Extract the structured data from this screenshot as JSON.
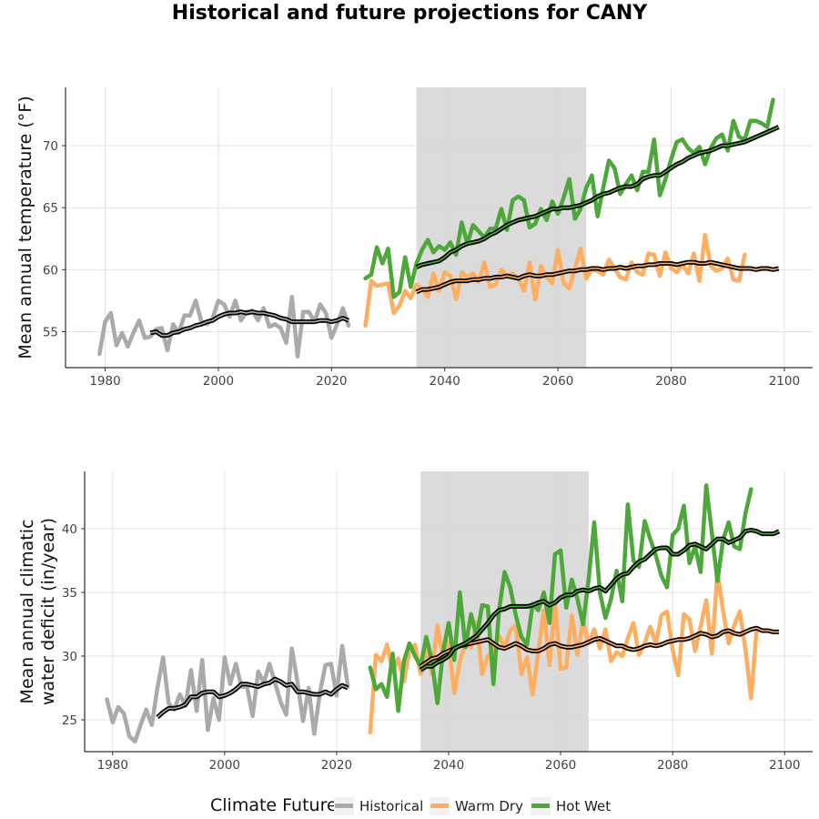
{
  "title": "Historical and future projections for CANY",
  "colors": {
    "historical": "#aaaaaa",
    "warm_dry": "#fdae61",
    "hot_wet": "#4da83a",
    "smooth": "#000000",
    "shade": "#d9d9d9"
  },
  "legend": {
    "title": "Climate Future",
    "items": [
      {
        "label": "Historical",
        "color": "#aaaaaa"
      },
      {
        "label": "Warm Dry",
        "color": "#fdae61"
      },
      {
        "label": "Hot Wet",
        "color": "#4da83a"
      }
    ]
  },
  "chart_data": [
    {
      "type": "line",
      "ylabel": [
        "Mean annual temperature (°F)"
      ],
      "xlim": [
        1973,
        2105
      ],
      "ylim": [
        52.1,
        74.7
      ],
      "xticks": [
        1980,
        2000,
        2020,
        2040,
        2060,
        2080,
        2100
      ],
      "yticks": [
        55,
        60,
        65,
        70
      ],
      "shaded_period": [
        2035,
        2065
      ],
      "grid": true,
      "series": [
        {
          "name": "Historical",
          "key": "historical",
          "x_start": 1979,
          "values": [
            53.2,
            55.8,
            56.5,
            53.9,
            54.9,
            53.8,
            54.9,
            55.9,
            54.5,
            54.6,
            55.2,
            55.3,
            53.5,
            55.6,
            54.9,
            56.3,
            56.3,
            57.5,
            55.8,
            55.6,
            56.1,
            57.5,
            57.2,
            56.2,
            57.5,
            55.9,
            56.6,
            56.7,
            55.9,
            56.9,
            55.4,
            55.6,
            55.3,
            54.1,
            57.8,
            53.0,
            56.6,
            56.6,
            55.8,
            57.2,
            56.5,
            54.5,
            55.6,
            56.9,
            55.5
          ]
        },
        {
          "name": "Warm Dry",
          "key": "warm_dry",
          "x_start": 2026,
          "values": [
            55.5,
            59.1,
            58.7,
            58.8,
            58.9,
            56.5,
            57.1,
            58.3,
            57.7,
            58.8,
            58.4,
            57.8,
            59.7,
            58.3,
            59.8,
            59.5,
            57.6,
            59.8,
            59.4,
            59.7,
            59.0,
            60.6,
            58.6,
            58.8,
            60.0,
            59.5,
            59.7,
            59.3,
            58.3,
            60.6,
            57.6,
            60.3,
            59.4,
            58.9,
            61.6,
            58.9,
            58.5,
            60.1,
            61.7,
            59.3,
            60.0,
            59.9,
            59.6,
            60.8,
            60.1,
            59.4,
            59.2,
            60.6,
            59.8,
            59.6,
            61.3,
            61.2,
            59.5,
            61.4,
            60.1,
            59.8,
            60.4,
            59.7,
            61.3,
            59.1,
            62.8,
            60.3,
            59.9,
            60.1,
            60.9,
            59.2,
            59.1,
            61.2
          ]
        },
        {
          "name": "Hot Wet",
          "key": "hot_wet",
          "x_start": 2026,
          "values": [
            59.3,
            59.6,
            61.8,
            60.5,
            61.7,
            57.8,
            58.2,
            61.0,
            58.6,
            60.5,
            61.6,
            62.4,
            61.4,
            61.9,
            61.6,
            62.2,
            61.2,
            63.8,
            62.1,
            63.6,
            63.1,
            62.6,
            63.3,
            63.3,
            64.9,
            63.2,
            65.6,
            65.9,
            65.6,
            63.4,
            63.7,
            64.9,
            64.0,
            65.5,
            64.5,
            65.8,
            67.3,
            64.1,
            64.9,
            66.6,
            67.6,
            64.3,
            66.6,
            68.8,
            68.2,
            66.1,
            66.9,
            67.6,
            66.4,
            67.9,
            67.9,
            70.5,
            66.0,
            67.3,
            68.9,
            70.3,
            70.5,
            69.8,
            69.4,
            69.9,
            68.5,
            69.8,
            70.6,
            70.9,
            69.6,
            72.0,
            70.7,
            70.5,
            72.0,
            72.0,
            71.8,
            71.5,
            73.7
          ]
        },
        {
          "name": "Historical smoothed",
          "key": "smooth",
          "x_start": 1988,
          "values": [
            54.9,
            55.0,
            54.7,
            54.7,
            54.9,
            55.0,
            55.2,
            55.3,
            55.5,
            55.6,
            55.8,
            55.9,
            56.2,
            56.4,
            56.5,
            56.5,
            56.6,
            56.5,
            56.6,
            56.5,
            56.5,
            56.4,
            56.3,
            56.1,
            56.0,
            55.8,
            55.8,
            55.8,
            55.8,
            55.8,
            55.9,
            55.9,
            55.8,
            55.9,
            56.1,
            55.9
          ]
        },
        {
          "name": "Warm Dry smoothed",
          "key": "smooth",
          "x_start": 2035,
          "values": [
            58.2,
            58.4,
            58.4,
            58.5,
            58.6,
            58.8,
            59.0,
            59.1,
            59.1,
            59.1,
            59.2,
            59.2,
            59.3,
            59.3,
            59.4,
            59.4,
            59.5,
            59.4,
            59.3,
            59.5,
            59.6,
            59.5,
            59.5,
            59.6,
            59.6,
            59.7,
            59.8,
            59.9,
            59.9,
            60.0,
            60.0,
            60.1,
            60.1,
            60.0,
            60.1,
            60.1,
            60.2,
            60.1,
            60.2,
            60.3,
            60.3,
            60.4,
            60.4,
            60.5,
            60.5,
            60.5,
            60.4,
            60.5,
            60.6,
            60.6,
            60.5,
            60.5,
            60.6,
            60.5,
            60.4,
            60.3,
            60.2,
            60.1,
            60.1,
            60.1,
            60.0,
            60.1,
            60.1,
            60.0,
            60.1
          ]
        },
        {
          "name": "Hot Wet smoothed",
          "key": "smooth",
          "x_start": 2035,
          "values": [
            60.2,
            60.4,
            60.5,
            60.6,
            60.7,
            61.0,
            61.4,
            61.6,
            61.9,
            62.1,
            62.2,
            62.3,
            62.5,
            62.8,
            63.0,
            63.3,
            63.6,
            63.8,
            64.0,
            64.1,
            64.2,
            64.3,
            64.5,
            64.7,
            64.9,
            64.9,
            65.0,
            65.0,
            65.1,
            65.2,
            65.4,
            65.6,
            65.9,
            66.1,
            66.2,
            66.4,
            66.6,
            66.7,
            66.7,
            66.9,
            67.3,
            67.5,
            67.6,
            67.6,
            67.9,
            68.2,
            68.5,
            68.7,
            69.0,
            69.2,
            69.4,
            69.5,
            69.6,
            69.8,
            70.0,
            70.0,
            70.1,
            70.2,
            70.3,
            70.5,
            70.7,
            70.9,
            71.1,
            71.3,
            71.5
          ]
        }
      ]
    },
    {
      "type": "line",
      "ylabel": [
        "Mean annual climatic",
        "water deficit (in/year)"
      ],
      "xlim": [
        1975,
        2105
      ],
      "ylim": [
        22.5,
        44.5
      ],
      "xticks": [
        1980,
        2000,
        2020,
        2040,
        2060,
        2080,
        2100
      ],
      "yticks": [
        25,
        30,
        35,
        40
      ],
      "shaded_period": [
        2035,
        2065
      ],
      "grid": true,
      "series": [
        {
          "name": "Historical",
          "key": "historical",
          "x_start": 1979,
          "values": [
            26.6,
            24.8,
            26.0,
            25.5,
            23.7,
            23.3,
            24.6,
            25.8,
            24.6,
            27.5,
            29.9,
            26.3,
            25.8,
            27.0,
            26.1,
            28.9,
            25.7,
            29.7,
            24.2,
            26.7,
            25.0,
            29.9,
            27.8,
            29.4,
            27.6,
            27.6,
            25.3,
            28.8,
            27.9,
            29.4,
            27.9,
            26.4,
            25.4,
            30.6,
            28.0,
            24.9,
            27.5,
            23.9,
            27.1,
            29.3,
            29.4,
            26.9,
            30.8,
            27.6
          ]
        },
        {
          "name": "Warm Dry",
          "key": "warm_dry",
          "x_start": 2026,
          "values": [
            24.0,
            30.1,
            29.6,
            30.9,
            28.8,
            29.8,
            28.0,
            30.5,
            30.9,
            28.6,
            30.7,
            28.6,
            32.4,
            29.9,
            31.1,
            27.1,
            29.6,
            31.0,
            30.7,
            32.7,
            28.6,
            30.0,
            30.4,
            31.6,
            30.7,
            32.0,
            32.4,
            28.6,
            29.9,
            27.0,
            30.3,
            33.6,
            29.3,
            34.2,
            29.0,
            29.1,
            33.2,
            30.1,
            32.7,
            31.0,
            32.1,
            30.6,
            32.1,
            29.6,
            30.3,
            30.0,
            31.4,
            32.6,
            30.1,
            31.0,
            32.3,
            31.0,
            33.2,
            33.5,
            30.5,
            28.5,
            33.3,
            32.9,
            30.4,
            32.3,
            34.4,
            30.2,
            36.6,
            33.6,
            31.0,
            32.4,
            33.5,
            30.5,
            26.7,
            32.1
          ]
        },
        {
          "name": "Hot Wet",
          "key": "hot_wet",
          "x_start": 2026,
          "values": [
            29.1,
            27.4,
            27.8,
            26.8,
            30.2,
            25.7,
            29.6,
            31.0,
            30.0,
            29.2,
            31.5,
            29.7,
            26.3,
            30.3,
            32.6,
            29.7,
            35.0,
            30.7,
            33.3,
            31.5,
            34.0,
            33.9,
            27.8,
            33.6,
            36.6,
            35.4,
            33.2,
            31.5,
            30.9,
            34.1,
            33.6,
            35.0,
            32.6,
            38.0,
            38.3,
            33.8,
            36.0,
            34.5,
            32.5,
            36.0,
            40.5,
            35.0,
            33.0,
            34.5,
            36.7,
            34.3,
            41.9,
            37.5,
            37.0,
            40.6,
            39.2,
            37.9,
            36.3,
            35.4,
            39.5,
            40.0,
            41.8,
            37.3,
            38.6,
            36.6,
            43.4,
            39.7,
            35.9,
            39.1,
            40.5,
            38.6,
            38.4,
            41.2,
            43.1
          ]
        },
        {
          "name": "Historical smoothed",
          "key": "smooth",
          "x_start": 1988,
          "values": [
            25.2,
            25.6,
            25.9,
            25.9,
            26.0,
            26.2,
            26.8,
            26.8,
            27.1,
            27.2,
            27.2,
            26.8,
            26.9,
            27.1,
            27.4,
            27.8,
            27.8,
            27.7,
            27.6,
            27.8,
            27.9,
            28.2,
            28.0,
            27.7,
            27.8,
            27.2,
            27.2,
            27.1,
            27.0,
            27.0,
            27.2,
            27.0,
            27.4,
            27.7,
            27.5
          ]
        },
        {
          "name": "Warm Dry smoothed",
          "key": "smooth",
          "x_start": 2035,
          "values": [
            29.2,
            29.5,
            29.8,
            29.9,
            30.2,
            30.4,
            30.6,
            30.8,
            30.9,
            31.0,
            31.1,
            31.2,
            31.3,
            31.0,
            30.7,
            30.6,
            30.8,
            31.0,
            30.8,
            30.5,
            30.4,
            30.4,
            30.6,
            30.9,
            31.0,
            30.8,
            30.7,
            30.7,
            30.8,
            30.9,
            31.1,
            31.3,
            31.4,
            31.2,
            31.0,
            30.8,
            30.8,
            30.6,
            30.5,
            30.6,
            30.8,
            30.9,
            30.8,
            30.9,
            31.1,
            31.2,
            31.3,
            31.3,
            31.4,
            31.6,
            31.8,
            31.7,
            31.5,
            31.6,
            31.9,
            32.0,
            31.8,
            31.7,
            31.9,
            32.1,
            32.2,
            32.0,
            32.0,
            31.9,
            31.9
          ]
        },
        {
          "name": "Hot Wet smoothed",
          "key": "smooth",
          "x_start": 2035,
          "values": [
            28.9,
            29.2,
            29.2,
            29.5,
            29.7,
            30.0,
            30.6,
            30.8,
            31.0,
            31.3,
            31.6,
            32.1,
            32.6,
            33.2,
            33.6,
            33.7,
            33.9,
            33.9,
            33.9,
            33.9,
            34.0,
            34.2,
            34.3,
            34.0,
            34.2,
            34.6,
            34.8,
            34.8,
            35.1,
            35.2,
            35.1,
            35.3,
            35.4,
            35.1,
            35.6,
            36.1,
            36.4,
            36.5,
            37.0,
            37.4,
            37.6,
            38.0,
            38.4,
            38.5,
            38.5,
            38.0,
            38.0,
            38.3,
            38.7,
            38.8,
            38.6,
            38.4,
            38.8,
            39.2,
            39.2,
            38.9,
            39.1,
            39.3,
            39.8,
            39.9,
            39.8,
            39.6,
            39.6,
            39.6,
            39.8
          ]
        }
      ]
    }
  ]
}
